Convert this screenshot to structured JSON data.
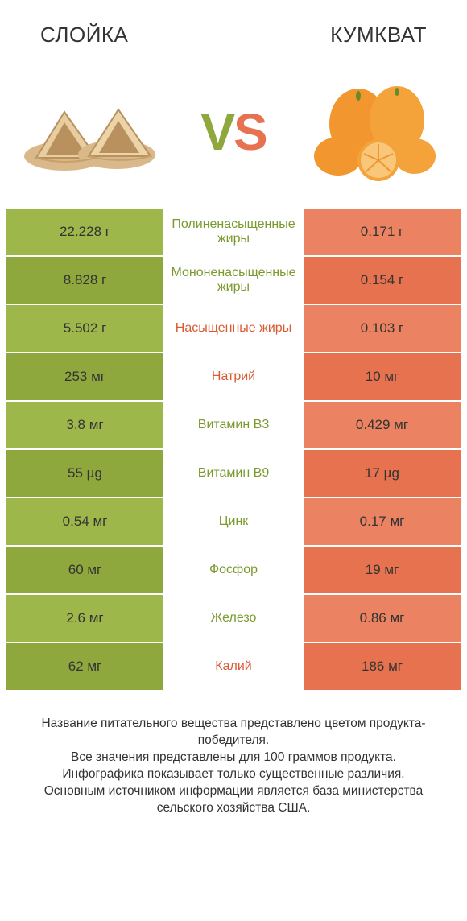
{
  "header": {
    "left": "СЛОЙКА",
    "right": "КУМКВАТ"
  },
  "vs": {
    "v": "V",
    "s": "S"
  },
  "colors": {
    "left_even": "#9db74a",
    "left_odd": "#8fa83d",
    "right_even": "#eb8362",
    "right_odd": "#e7724f",
    "mid_green": "#7a9a2e",
    "mid_orange": "#d95a33",
    "bg": "#ffffff"
  },
  "rows": [
    {
      "left": "22.228 г",
      "label": "Полиненасыщенные жиры",
      "right": "0.171 г",
      "winner": "left"
    },
    {
      "left": "8.828 г",
      "label": "Мононенасыщенные жиры",
      "right": "0.154 г",
      "winner": "left"
    },
    {
      "left": "5.502 г",
      "label": "Насыщенные жиры",
      "right": "0.103 г",
      "winner": "right"
    },
    {
      "left": "253 мг",
      "label": "Натрий",
      "right": "10 мг",
      "winner": "right"
    },
    {
      "left": "3.8 мг",
      "label": "Витамин B3",
      "right": "0.429 мг",
      "winner": "left"
    },
    {
      "left": "55 µg",
      "label": "Витамин B9",
      "right": "17 µg",
      "winner": "left"
    },
    {
      "left": "0.54 мг",
      "label": "Цинк",
      "right": "0.17 мг",
      "winner": "left"
    },
    {
      "left": "60 мг",
      "label": "Фосфор",
      "right": "19 мг",
      "winner": "left"
    },
    {
      "left": "2.6 мг",
      "label": "Железо",
      "right": "0.86 мг",
      "winner": "left"
    },
    {
      "left": "62 мг",
      "label": "Калий",
      "right": "186 мг",
      "winner": "right"
    }
  ],
  "footer": {
    "line1": "Название питательного вещества представлено цветом продукта-победителя.",
    "line2": "Все значения представлены для 100 граммов продукта.",
    "line3": "Инфографика показывает только существенные различия.",
    "line4": "Основным источником информации является база министерства сельского хозяйства США."
  },
  "illustrations": {
    "left_alt": "pastry",
    "right_alt": "kumquat"
  }
}
